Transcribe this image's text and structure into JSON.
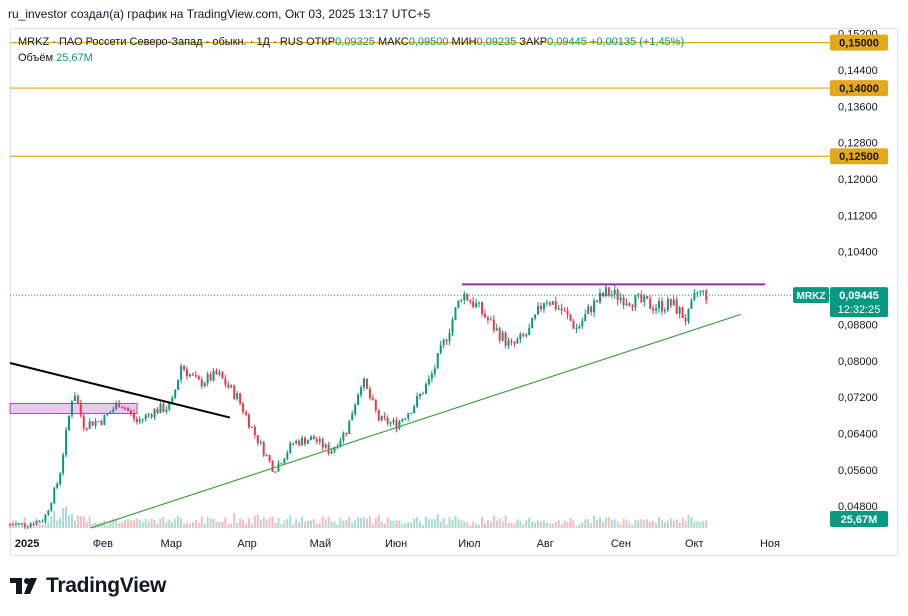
{
  "header": {
    "text": "ru_investor создал(а) график на TradingView.com, Окт 03, 2025 13:17 UTC+5"
  },
  "legend": {
    "symbol": "MRKZ",
    "name": "ПАО Россети Северо-Запад - обыкн.",
    "interval": "1Д",
    "exchange": "RUS",
    "open_label": "ОТКР",
    "open": "0,09325",
    "high_label": "МАКС",
    "high": "0,09500",
    "low_label": "МИН",
    "low": "0,09235",
    "close_label": "ЗАКР",
    "close": "0,09445",
    "change": "+0,00135 (+1,45%)",
    "volume_label": "Объём",
    "volume": "25,67М"
  },
  "price_tag": {
    "symbol": "MRKZ",
    "price": "0,09445",
    "countdown": "12:32:25"
  },
  "volume_tag": "25,67М",
  "footer": {
    "brand": "TradingView"
  },
  "colors": {
    "up": "#089981",
    "down": "#f23645",
    "level": "#e3a81b",
    "resistance": "#9c27b0",
    "support": "#43a047",
    "trend": "#000000",
    "zone": "#e1bee7"
  },
  "chart_data": {
    "type": "candlestick",
    "y_axis": {
      "ylim": [
        0.0432,
        0.153
      ],
      "tick_labels": [
        "0,04800",
        "0,05600",
        "0,06400",
        "0,07200",
        "0,08000",
        "0,08800",
        "0,10400",
        "0,11200",
        "0,12000",
        "0,12800",
        "0,13600",
        "0,14400",
        "0,15200"
      ],
      "ticks": [
        0.048,
        0.056,
        0.064,
        0.072,
        0.08,
        0.088,
        0.104,
        0.112,
        0.12,
        0.128,
        0.136,
        0.144,
        0.152
      ]
    },
    "x_axis": {
      "labels": [
        "2025",
        "Фев",
        "Мар",
        "Апр",
        "Май",
        "Июн",
        "Июл",
        "Авг",
        "Сен",
        "Окт",
        "Ноя"
      ],
      "months": [
        "2025-01",
        "2025-02",
        "2025-03",
        "2025-04",
        "2025-05",
        "2025-06",
        "2025-07",
        "2025-08",
        "2025-09",
        "2025-10",
        "2025-11"
      ]
    },
    "levels": [
      {
        "value": 0.15,
        "label": "0,15000"
      },
      {
        "value": 0.14,
        "label": "0,14000"
      },
      {
        "value": 0.125,
        "label": "0,12500"
      }
    ],
    "last_close": 0.09445,
    "resistance": {
      "value": 0.0968,
      "from": "2025-06-28",
      "to": "2025-10-30"
    },
    "support_trend": {
      "from": [
        "2025-01-27",
        0.0432
      ],
      "to": [
        "2025-10-20",
        0.0902
      ]
    },
    "down_trend": {
      "from": [
        "2024-12-25",
        0.0795
      ],
      "to": [
        "2025-03-25",
        0.0675
      ]
    },
    "zone": {
      "from": [
        "2024-12-25",
        0.0706
      ],
      "to": [
        "2025-02-15",
        0.0684
      ]
    },
    "price_path": [
      [
        "2024-12-25",
        0.044
      ],
      [
        "2025-01-01",
        0.044
      ],
      [
        "2025-01-08",
        0.0452
      ],
      [
        "2025-01-14",
        0.054
      ],
      [
        "2025-01-17",
        0.064
      ],
      [
        "2025-01-20",
        0.074
      ],
      [
        "2025-01-24",
        0.066
      ],
      [
        "2025-02-01",
        0.067
      ],
      [
        "2025-02-08",
        0.071
      ],
      [
        "2025-02-15",
        0.0665
      ],
      [
        "2025-02-22",
        0.069
      ],
      [
        "2025-03-01",
        0.07
      ],
      [
        "2025-03-05",
        0.079
      ],
      [
        "2025-03-12",
        0.075
      ],
      [
        "2025-03-20",
        0.077
      ],
      [
        "2025-03-28",
        0.072
      ],
      [
        "2025-04-04",
        0.064
      ],
      [
        "2025-04-12",
        0.056
      ],
      [
        "2025-04-20",
        0.062
      ],
      [
        "2025-04-28",
        0.063
      ],
      [
        "2025-05-05",
        0.06
      ],
      [
        "2025-05-12",
        0.065
      ],
      [
        "2025-05-18",
        0.076
      ],
      [
        "2025-05-25",
        0.067
      ],
      [
        "2025-06-01",
        0.066
      ],
      [
        "2025-06-08",
        0.07
      ],
      [
        "2025-06-15",
        0.076
      ],
      [
        "2025-06-22",
        0.086
      ],
      [
        "2025-06-28",
        0.095
      ],
      [
        "2025-07-04",
        0.092
      ],
      [
        "2025-07-10",
        0.088
      ],
      [
        "2025-07-18",
        0.083
      ],
      [
        "2025-07-25",
        0.086
      ],
      [
        "2025-08-01",
        0.094
      ],
      [
        "2025-08-08",
        0.091
      ],
      [
        "2025-08-14",
        0.087
      ],
      [
        "2025-08-20",
        0.092
      ],
      [
        "2025-08-26",
        0.095
      ],
      [
        "2025-09-01",
        0.094
      ],
      [
        "2025-09-08",
        0.093
      ],
      [
        "2025-09-15",
        0.092
      ],
      [
        "2025-09-22",
        0.0925
      ],
      [
        "2025-09-28",
        0.089
      ],
      [
        "2025-10-02",
        0.095
      ],
      [
        "2025-10-07",
        0.0944
      ]
    ]
  }
}
